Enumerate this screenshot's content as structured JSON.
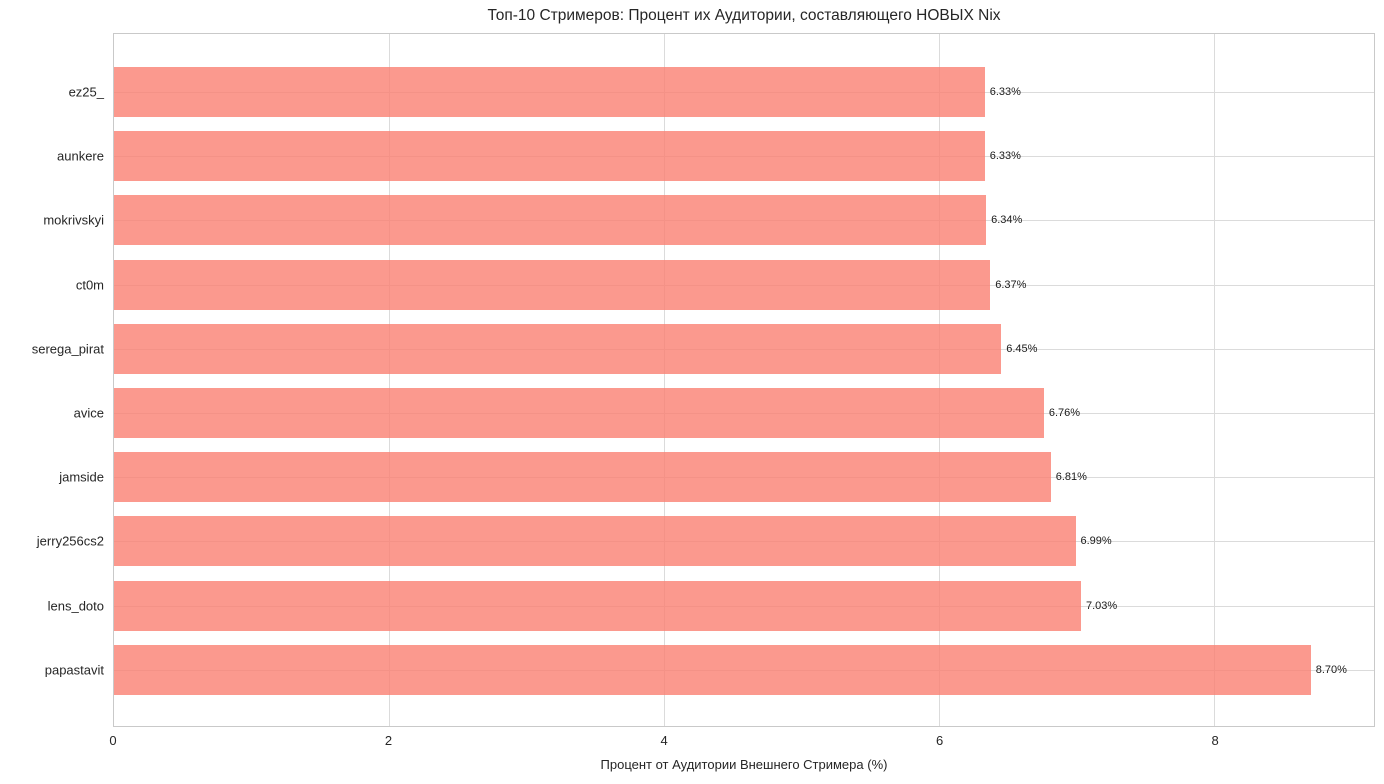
{
  "chart_data": {
    "type": "bar",
    "orientation": "horizontal",
    "title": "Топ-10 Стримеров: Процент их Аудитории, составляющего НОВЫХ Nix",
    "xlabel": "Процент от Аудитории Внешнего Стримера (%)",
    "categories": [
      "ez25_",
      "aunkere",
      "mokrivskyi",
      "ct0m",
      "serega_pirat",
      "avice",
      "jamside",
      "jerry256cs2",
      "lens_doto",
      "papastavit"
    ],
    "values": [
      6.33,
      6.33,
      6.34,
      6.37,
      6.45,
      6.76,
      6.81,
      6.99,
      7.03,
      8.7
    ],
    "value_labels": [
      "6.33%",
      "6.33%",
      "6.34%",
      "6.37%",
      "6.45%",
      "6.76%",
      "6.81%",
      "6.99%",
      "7.03%",
      "8.70%"
    ],
    "xticks": [
      0,
      2,
      4,
      6,
      8
    ],
    "xlim": [
      0,
      9.16
    ],
    "grid": true,
    "legend": "none",
    "bar_color": "#FA8072",
    "bar_alpha": 0.8,
    "grid_color": "#DBDBDB",
    "text_color": "#262626",
    "background_color": "#FFFFFF"
  }
}
